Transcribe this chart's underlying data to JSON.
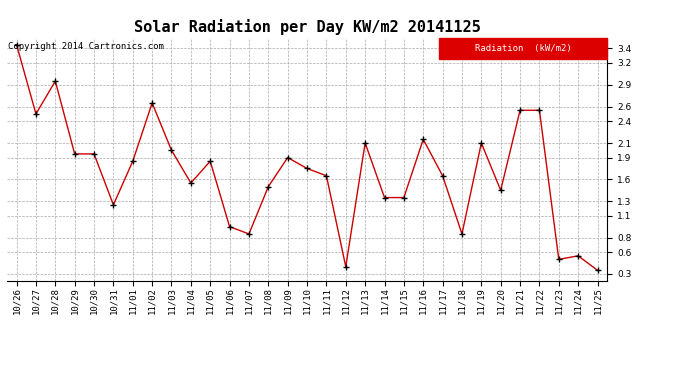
{
  "title": "Solar Radiation per Day KW/m2 20141125",
  "copyright_text": "Copyright 2014 Cartronics.com",
  "legend_label": "Radiation  (kW/m2)",
  "dates": [
    "10/26",
    "10/27",
    "10/28",
    "10/29",
    "10/30",
    "10/31",
    "11/01",
    "11/02",
    "11/03",
    "11/04",
    "11/05",
    "11/06",
    "11/07",
    "11/08",
    "11/09",
    "11/10",
    "11/11",
    "11/12",
    "11/13",
    "11/14",
    "11/15",
    "11/16",
    "11/17",
    "11/18",
    "11/19",
    "11/20",
    "11/21",
    "11/22",
    "11/23",
    "11/24",
    "11/25"
  ],
  "values": [
    3.45,
    2.5,
    2.95,
    1.95,
    1.95,
    1.25,
    1.85,
    2.65,
    2.0,
    1.55,
    1.85,
    0.95,
    0.85,
    1.5,
    1.9,
    1.75,
    1.65,
    0.4,
    2.1,
    1.35,
    1.35,
    2.15,
    1.65,
    0.85,
    2.1,
    1.45,
    2.55,
    2.55,
    0.5,
    0.55,
    0.35
  ],
  "line_color": "#cc0000",
  "marker_color": "#000000",
  "bg_color": "#ffffff",
  "plot_bg_color": "#ffffff",
  "grid_color": "#aaaaaa",
  "legend_bg": "#dd0000",
  "legend_text_color": "#ffffff",
  "ylim": [
    0.2,
    3.55
  ],
  "yticks": [
    0.3,
    0.6,
    0.8,
    1.1,
    1.3,
    1.6,
    1.9,
    2.1,
    2.4,
    2.6,
    2.9,
    3.2,
    3.4
  ],
  "title_fontsize": 11,
  "tick_fontsize": 6.5,
  "copyright_fontsize": 6.5
}
